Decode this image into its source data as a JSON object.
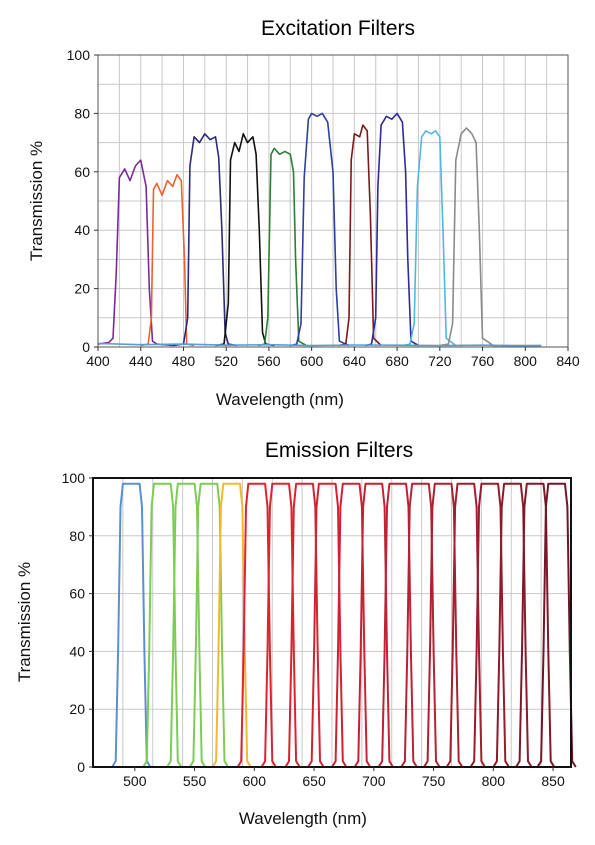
{
  "chart_data": [
    {
      "type": "line",
      "title": "Excitation Filters",
      "xlabel": "Wavelength",
      "xlabel_unit": "(nm)",
      "ylabel": "Transmission %",
      "xlim": [
        400,
        840
      ],
      "ylim": [
        0,
        100
      ],
      "xticks": [
        "400",
        "440",
        "480",
        "520",
        "560",
        "600",
        "640",
        "680",
        "720",
        "760",
        "800",
        "840"
      ],
      "yticks": [
        "0",
        "20",
        "40",
        "60",
        "80",
        "100"
      ],
      "grid": true,
      "series": [
        {
          "color": "#7b2a99",
          "x": [
            400,
            410,
            414,
            417,
            420,
            425,
            430,
            435,
            440,
            445,
            448,
            451,
            455,
            470
          ],
          "y": [
            1,
            1.5,
            3,
            25,
            58,
            61,
            57,
            62,
            64,
            55,
            20,
            2,
            1,
            0.5
          ]
        },
        {
          "color": "#e8642c",
          "x": [
            440,
            447,
            450,
            452,
            455,
            460,
            465,
            470,
            474,
            478,
            481,
            483,
            490
          ],
          "y": [
            0.5,
            1,
            10,
            54,
            56,
            52,
            57,
            55,
            59,
            57,
            30,
            1,
            0.5
          ]
        },
        {
          "color": "#2b2b7a",
          "x": [
            470,
            480,
            484,
            486,
            490,
            495,
            500,
            505,
            510,
            513,
            516,
            519,
            522,
            530
          ],
          "y": [
            0.5,
            1,
            10,
            62,
            72,
            70,
            73,
            71,
            72,
            65,
            40,
            5,
            1,
            0.5
          ]
        },
        {
          "color": "#111111",
          "x": [
            510,
            518,
            522,
            524,
            528,
            532,
            536,
            540,
            545,
            548,
            551,
            554,
            557,
            565
          ],
          "y": [
            0.5,
            1,
            15,
            64,
            70,
            67,
            73,
            70,
            72,
            66,
            40,
            5,
            1,
            0.5
          ]
        },
        {
          "color": "#2e7d32",
          "x": [
            550,
            556,
            559,
            562,
            565,
            570,
            575,
            580,
            583,
            585,
            588,
            595
          ],
          "y": [
            0.5,
            1,
            10,
            66,
            68,
            66,
            67,
            66,
            60,
            30,
            2,
            0.5
          ]
        },
        {
          "color": "#2d3e9e",
          "x": [
            580,
            586,
            590,
            593,
            597,
            600,
            605,
            610,
            615,
            620,
            623,
            626,
            635
          ],
          "y": [
            0.5,
            1,
            8,
            58,
            78,
            80,
            79,
            80,
            77,
            60,
            20,
            2,
            0.5
          ]
        },
        {
          "color": "#7a1a1a",
          "x": [
            625,
            632,
            635,
            637,
            640,
            645,
            648,
            652,
            655,
            658,
            665
          ],
          "y": [
            0.5,
            1,
            10,
            64,
            73,
            72,
            76,
            74,
            45,
            3,
            0.5
          ]
        },
        {
          "color": "#2d2a9a",
          "x": [
            650,
            656,
            660,
            662,
            665,
            670,
            675,
            680,
            685,
            688,
            690,
            693,
            700
          ],
          "y": [
            0.5,
            1,
            10,
            55,
            76,
            79,
            78,
            80,
            77,
            60,
            30,
            2,
            0.5
          ]
        },
        {
          "color": "#4fb7e6",
          "x": [
            685,
            692,
            696,
            699,
            703,
            707,
            712,
            716,
            720,
            723,
            726,
            735
          ],
          "y": [
            0.5,
            1,
            8,
            55,
            72,
            74,
            73,
            74,
            72,
            40,
            3,
            0.5
          ]
        },
        {
          "color": "#8a8a8a",
          "x": [
            720,
            728,
            732,
            735,
            740,
            745,
            750,
            754,
            757,
            760,
            770,
            800,
            815
          ],
          "y": [
            0.5,
            1,
            8,
            64,
            73,
            75,
            73,
            70,
            40,
            3,
            0.5,
            0.5,
            0.5
          ]
        },
        {
          "color": "#5a9bd5",
          "x": [
            400,
            440,
            480,
            520,
            560,
            600,
            640,
            680,
            720,
            760,
            800,
            815
          ],
          "y": [
            1.2,
            0.8,
            1,
            0.6,
            0.8,
            0.5,
            0.7,
            0.6,
            0.5,
            0.6,
            0.4,
            0.5
          ]
        }
      ]
    },
    {
      "type": "line",
      "title": "Emission Filters",
      "xlabel": "Wavelength",
      "xlabel_unit": "(nm)",
      "ylabel": "Transmission %",
      "xlim": [
        465,
        865
      ],
      "ylim": [
        0,
        100
      ],
      "xticks": [
        "500",
        "550",
        "600",
        "650",
        "700",
        "750",
        "800",
        "850"
      ],
      "yticks": [
        "0",
        "20",
        "40",
        "60",
        "80",
        "100"
      ],
      "grid": true,
      "passband_width_nm": 20,
      "filters": [
        {
          "center": 497,
          "color": "#5b8fd0"
        },
        {
          "center": 523,
          "color": "#7ccc55"
        },
        {
          "center": 543,
          "color": "#7ccc55"
        },
        {
          "center": 562,
          "color": "#7ccc55"
        },
        {
          "center": 581,
          "color": "#f2b830"
        },
        {
          "center": 602,
          "color": "#dc2430"
        },
        {
          "center": 622,
          "color": "#dc2430"
        },
        {
          "center": 642,
          "color": "#d62232"
        },
        {
          "center": 661,
          "color": "#d22232"
        },
        {
          "center": 681,
          "color": "#cc2234"
        },
        {
          "center": 700,
          "color": "#c42234"
        },
        {
          "center": 720,
          "color": "#bc2233"
        },
        {
          "center": 739,
          "color": "#b42233"
        },
        {
          "center": 758,
          "color": "#aa2030"
        },
        {
          "center": 777,
          "color": "#a01e2e"
        },
        {
          "center": 797,
          "color": "#961c2c"
        },
        {
          "center": 816,
          "color": "#8c1a2a"
        },
        {
          "center": 835,
          "color": "#801828"
        },
        {
          "center": 853,
          "color": "#731526"
        }
      ]
    }
  ]
}
